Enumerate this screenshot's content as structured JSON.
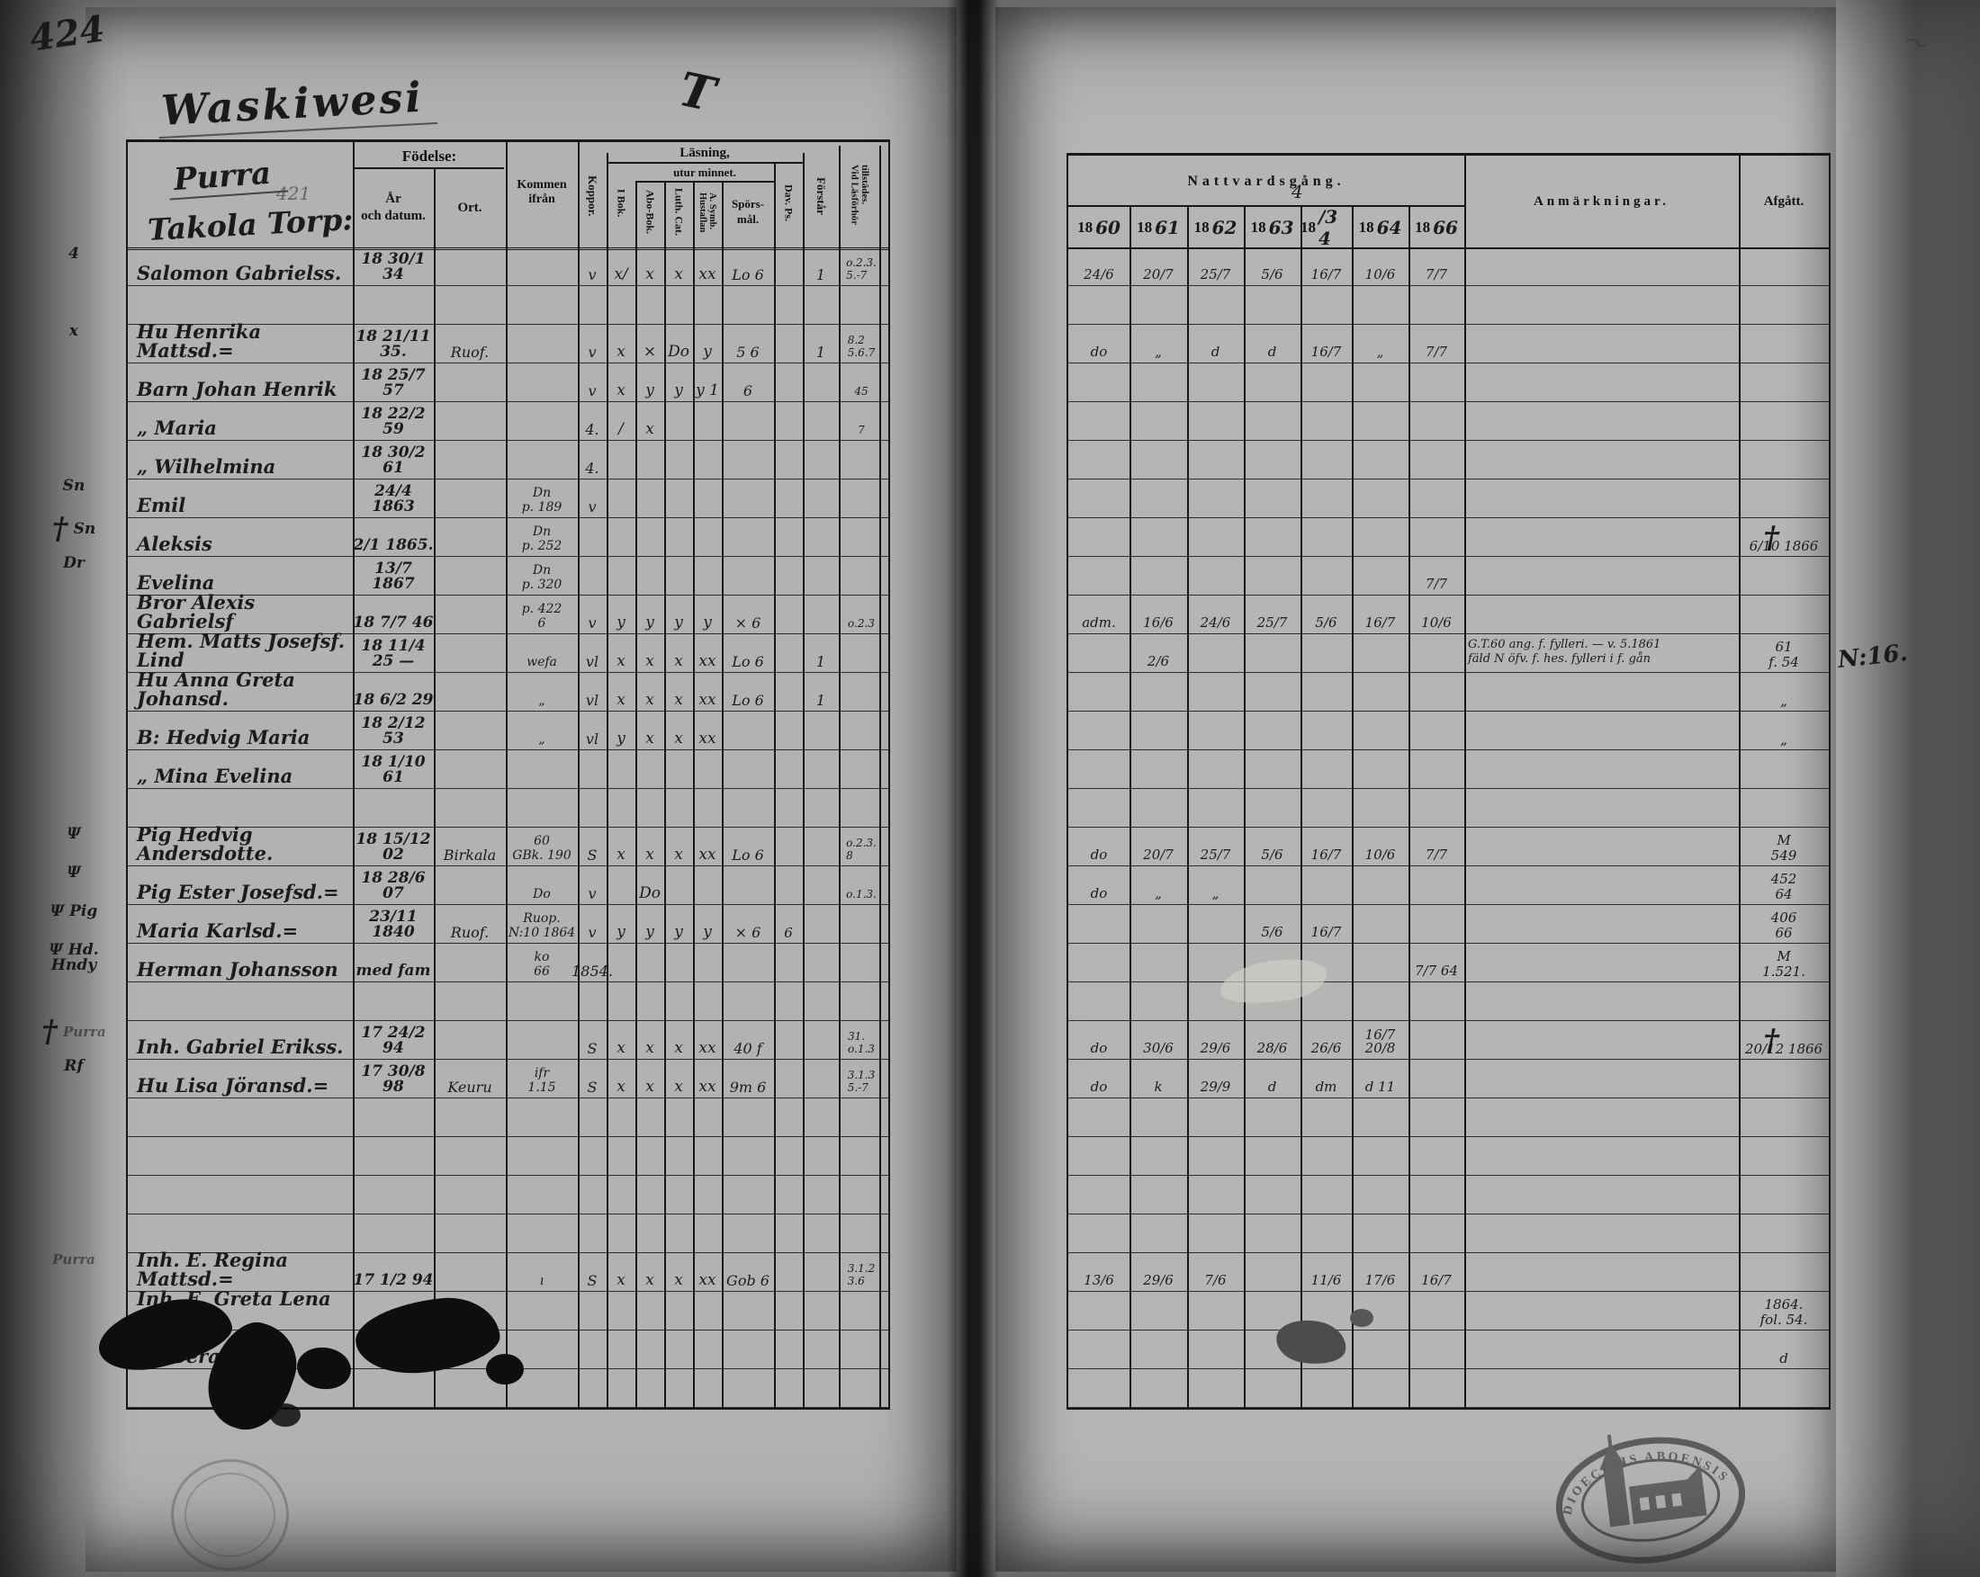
{
  "page_corner_number": "424",
  "title": {
    "script_title": "Waskiwesi",
    "flourish": "T"
  },
  "left_header": {
    "place_script": "Purra",
    "place_number": "421",
    "holding_script": "Takola Torp:",
    "fodelse": "Födelse:",
    "ar_och_datum": "År\noch datum.",
    "ort": "Ort.",
    "kommen_ifran": "Kommen ifrån",
    "koppor": "Koppor.",
    "lasning": "Läsning,",
    "utur_minnet": "utur minnet.",
    "i_bok": "I Bok.",
    "abo_bok": "Abo-Bok.",
    "luth_cat": "Luth. Cat.",
    "hustaflan": "Hustaflan\nA. Symb.",
    "sporsmal": "Spörs-\nmål.",
    "dav_ps": "Dav. Ps.",
    "forstar": "Förstår",
    "vid_lasforhor": "Vid Läsförhör\ntillstädes."
  },
  "right_header": {
    "nattvardsgang": "Nattvardsgång.",
    "year_prefix": "18",
    "year_suffixes": [
      "60",
      "61",
      "62",
      "63",
      "/3 4",
      "64",
      "66"
    ],
    "floating_four": "4",
    "anmarkningar": "Anmärkningar.",
    "afgatt": "Afgått."
  },
  "symbols": {
    "cross": "†",
    "psi": "Ψ"
  },
  "margin_note_right": "N:16.",
  "stamp": {
    "text": "DIOECESIS ABOENSIS",
    "icon": "church"
  },
  "rows": [
    {
      "m": "4",
      "name": "Salomon Gabrielss.",
      "birth": "18 30/1 34",
      "koppor": "v",
      "marks": [
        "x/",
        "x",
        "x",
        "xx"
      ],
      "spors": "Lo 6",
      "forstar": "1",
      "vid": "o.2.3.\n5.-7",
      "years": [
        "24/6",
        "20/7",
        "25/7",
        "5/6",
        "16/7",
        "10/6",
        "7/7"
      ]
    },
    {},
    {
      "m": "x",
      "name": "Hu Henrika Mattsd.=",
      "birth": "18 21/11 35.",
      "ort": "Ruof.",
      "koppor": "v",
      "marks": [
        "x",
        "×",
        "Do",
        "y"
      ],
      "spors": "5 6",
      "forstar": "1",
      "vid": "8.2\n5.6.7",
      "years": [
        "do",
        "„",
        "d",
        "d",
        "16/7",
        "„",
        "7/7"
      ]
    },
    {
      "name": "Barn Johan Henrik",
      "birth": "18 25/7 57",
      "koppor": "v",
      "marks": [
        "x",
        "y",
        "y",
        "y 1"
      ],
      "spors": "6",
      "vid": "45"
    },
    {
      "name": "„    Maria",
      "birth": "18 22/2 59",
      "koppor": "4.",
      "marks": [
        "/",
        "x",
        "",
        ""
      ],
      "vid": "7"
    },
    {
      "name": "„    Wilhelmina",
      "birth": "18 30/2 61",
      "koppor": "4."
    },
    {
      "m": "Sn",
      "name": "Emil",
      "birth": "24/4 1863",
      "kommen": "Dn\np. 189",
      "koppor": "v"
    },
    {
      "m": "Sn",
      "mc": true,
      "name": "Aleksis",
      "birth": "2/1 1865.",
      "kommen": "Dn\np. 252",
      "ac": true,
      "afg": "6/10 1866"
    },
    {
      "m": "Dr",
      "name": "Evelina",
      "birth": "13/7 1867",
      "kommen": "Dn\np. 320",
      "years": [
        "",
        "",
        "",
        "",
        "",
        "",
        "7/7"
      ]
    },
    {
      "name": "Bror Alexis Gabrielsf",
      "birth": "18 7/7 46",
      "kommen": "p. 422\n6",
      "koppor": "v",
      "marks": [
        "y",
        "y",
        "y",
        "y"
      ],
      "spors": "× 6",
      "vid": "o.2.3",
      "years": [
        "adm.",
        "16/6",
        "24/6",
        "25/7",
        "5/6",
        "16/7",
        "10/6"
      ]
    },
    {
      "name": "Hem. Matts Josefsf. Lind",
      "birth": "18 11/4 25 —",
      "kommen": "wefa",
      "koppor": "vl",
      "marks": [
        "x",
        "x",
        "x",
        "xx"
      ],
      "spors": "Lo 6",
      "forstar": "1",
      "years": [
        "",
        "2/6",
        "",
        "",
        "",
        "",
        ""
      ],
      "anm": "G.T.60 ang. f. fylleri. — v. 5.1861\nfäld N öfv. f. hes. fylleri i f. gån",
      "afg": "61\nf. 54"
    },
    {
      "name": "Hu Anna Greta Johansd.",
      "birth": "18 6/2 29",
      "kommen": "„",
      "koppor": "vl",
      "marks": [
        "x",
        "x",
        "x",
        "xx"
      ],
      "spors": "Lo 6",
      "forstar": "1",
      "afg": "„"
    },
    {
      "name": "B: Hedvig Maria",
      "birth": "18 2/12 53",
      "kommen": "„",
      "koppor": "vl",
      "marks": [
        "y",
        "x",
        "x",
        "xx"
      ],
      "afg": "„"
    },
    {
      "name": "„   Mina Evelina",
      "birth": "18 1/10 61"
    },
    {},
    {
      "m": "Ψ",
      "name": "Pig Hedvig Andersdotte.",
      "birth": "18 15/12 02",
      "ort": "Birkala",
      "kommen": "60\nGBk. 190",
      "koppor": "S",
      "marks": [
        "x",
        "x",
        "x",
        "xx"
      ],
      "spors": "Lo 6",
      "vid": "o.2.3.\n8",
      "years": [
        "do",
        "20/7",
        "25/7",
        "5/6",
        "16/7",
        "10/6",
        "7/7"
      ],
      "afg": "M\n549"
    },
    {
      "m": "Ψ",
      "name": "Pig Ester Josefsd.=",
      "birth": "18 28/6 07",
      "kommen": "Do",
      "koppor": "v",
      "marks": [
        "",
        "Do",
        "",
        ""
      ],
      "vid": "o.1.3.",
      "years": [
        "do",
        "„",
        "„",
        "",
        "",
        "",
        ""
      ],
      "afg": "452\n64"
    },
    {
      "m": "Ψ Pig",
      "name": "Maria Karlsd.=",
      "birth": "23/11 1840",
      "ort": "Ruof.",
      "kommen": "Ruop.\nN:10 1864",
      "koppor": "v",
      "marks": [
        "y",
        "y",
        "y",
        "y"
      ],
      "spors": "× 6",
      "dav": "6",
      "years": [
        "",
        "",
        "",
        "5/6",
        "16/7",
        "",
        ""
      ],
      "afg": "406\n66"
    },
    {
      "m": "Ψ Hd. Hndy",
      "name": "Herman Johansson",
      "birth": "med fam",
      "kommen": "ko\n66",
      "koppor": "1854.",
      "years": [
        "",
        "",
        "",
        "",
        "",
        "",
        "7/7 64"
      ],
      "afg": "M\n1.521."
    },
    {},
    {
      "m": "Purra",
      "mc": true,
      "name": "Inh. Gabriel Erikss.",
      "birth": "17 24/2 94",
      "koppor": "S",
      "marks": [
        "x",
        "x",
        "x",
        "xx"
      ],
      "spors": "40 f",
      "vid": "31.\no.1.3",
      "years": [
        "do",
        "30/6",
        "29/6",
        "28/6",
        "26/6",
        "16/7 20/8",
        ""
      ],
      "ac": true,
      "afg": "20/12 1866"
    },
    {
      "m": "Rf",
      "name": "Hu Lisa Jöransd.=",
      "birth": "17 30/8 98",
      "ort": "Keuru",
      "kommen": "ifr\n1.15",
      "koppor": "S",
      "marks": [
        "x",
        "x",
        "x",
        "xx"
      ],
      "spors": "9m 6",
      "vid": "3.1.3\n5.-7",
      "years": [
        "do",
        "k",
        "29/9",
        "d",
        "dm",
        "d 11",
        ""
      ]
    },
    {},
    {},
    {},
    {},
    {
      "m": "Purra",
      "name": "Inh. E. Regina Mattsd.=",
      "birth": "17 1/2 94",
      "kommen": "ı",
      "koppor": "S",
      "marks": [
        "x",
        "x",
        "x",
        "xx"
      ],
      "spors": "Gob 6",
      "vid": "3.1.2\n3.6",
      "years": [
        "13/6",
        "29/6",
        "7/6",
        "",
        "11/6",
        "17/6",
        "16/7"
      ]
    },
    {
      "name": "Inh. E. Greta Lena Gabrd.",
      "afg": "1864.\nfol. 54."
    },
    {
      "name": "Do Serafia",
      "afg": "d"
    },
    {}
  ]
}
